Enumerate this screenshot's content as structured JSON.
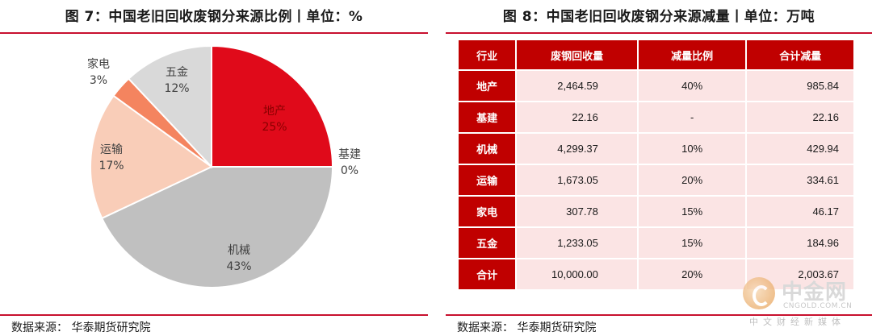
{
  "left": {
    "title": "图 7：中国老旧回收废钢分来源比例丨单位：%",
    "source": "数据来源：  华泰期货研究院"
  },
  "right": {
    "title": "图 8：中国老旧回收废钢分来源减量丨单位：万吨",
    "source": "数据来源：  华泰期货研究院"
  },
  "colors": {
    "accent": "#c8102e",
    "header": "#c00000",
    "cell": "#fbe4e4"
  },
  "chart_data": [
    {
      "type": "pie",
      "title": "图 7：中国老旧回收废钢分来源比例丨单位：%",
      "slices": [
        {
          "label": "地产",
          "value": 25,
          "text": "25%",
          "color": "#e00a1a"
        },
        {
          "label": "基建",
          "value": 0,
          "text": "0%",
          "color": "#c00000"
        },
        {
          "label": "机械",
          "value": 43,
          "text": "43%",
          "color": "#c0c0c0"
        },
        {
          "label": "运输",
          "value": 17,
          "text": "17%",
          "color": "#f9cdb8"
        },
        {
          "label": "家电",
          "value": 3,
          "text": "3%",
          "color": "#f4845f"
        },
        {
          "label": "五金",
          "value": 12,
          "text": "12%",
          "color": "#d9d9d9"
        }
      ]
    },
    {
      "type": "table",
      "title": "图 8：中国老旧回收废钢分来源减量丨单位：万吨",
      "columns": [
        "行业",
        "废钢回收量",
        "减量比例",
        "合计减量"
      ],
      "rows": [
        [
          "地产",
          "2,464.59",
          "40%",
          "985.84"
        ],
        [
          "基建",
          "22.16",
          "-",
          "22.16"
        ],
        [
          "机械",
          "4,299.37",
          "10%",
          "429.94"
        ],
        [
          "运输",
          "1,673.05",
          "20%",
          "334.61"
        ],
        [
          "家电",
          "307.78",
          "15%",
          "46.17"
        ],
        [
          "五金",
          "1,233.05",
          "15%",
          "184.96"
        ],
        [
          "合计",
          "10,000.00",
          "20%",
          "2,003.67"
        ]
      ]
    }
  ],
  "watermark": {
    "name": "中金网",
    "url": "CNGOLD.COM.CN",
    "subtitle": "中文财经新媒体"
  }
}
